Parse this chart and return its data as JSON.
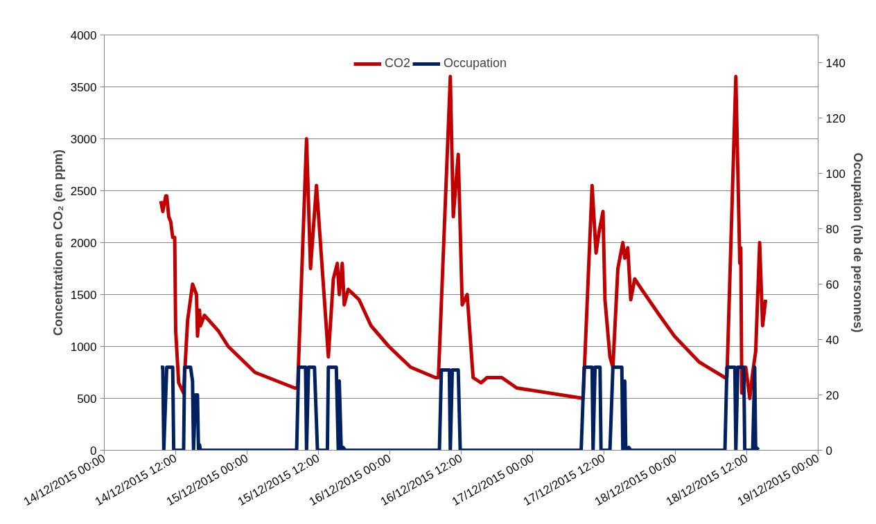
{
  "chart_data": {
    "type": "line",
    "xlabel": null,
    "ylabel": "Concentration en CO₂ (en ppm)",
    "y2label": "Occupation (nb de personnes)",
    "xlim": [
      "2015-12-14T00:00",
      "2015-12-19T00:00"
    ],
    "xticks": [
      {
        "value": "2015-12-14T00:00",
        "label": "14/12/2015 00:00"
      },
      {
        "value": "2015-12-14T12:00",
        "label": "14/12/2015 12:00"
      },
      {
        "value": "2015-12-15T00:00",
        "label": "15/12/2015 00:00"
      },
      {
        "value": "2015-12-15T12:00",
        "label": "15/12/2015 12:00"
      },
      {
        "value": "2015-12-16T00:00",
        "label": "16/12/2015 00:00"
      },
      {
        "value": "2015-12-16T12:00",
        "label": "16/12/2015 12:00"
      },
      {
        "value": "2015-12-17T00:00",
        "label": "17/12/2015 00:00"
      },
      {
        "value": "2015-12-17T12:00",
        "label": "17/12/2015 12:00"
      },
      {
        "value": "2015-12-18T00:00",
        "label": "18/12/2015 00:00"
      },
      {
        "value": "2015-12-18T12:00",
        "label": "18/12/2015 12:00"
      },
      {
        "value": "2015-12-19T00:00",
        "label": "19/12/2015 00:00"
      }
    ],
    "ylim": [
      0,
      4000
    ],
    "yticks": [
      0,
      500,
      1000,
      1500,
      2000,
      2500,
      3000,
      3500,
      4000
    ],
    "y2lim": [
      0,
      150
    ],
    "y2ticks": [
      0,
      20,
      40,
      60,
      80,
      100,
      120,
      140
    ],
    "grid": "y",
    "legend": "top",
    "marker": "none",
    "line_style": "solid",
    "series": [
      {
        "name": "CO2",
        "color": "#c00000",
        "x": [
          "2015-12-14T09:30",
          "2015-12-14T09:50",
          "2015-12-14T10:00",
          "2015-12-14T10:20",
          "2015-12-14T10:30",
          "2015-12-14T10:50",
          "2015-12-14T11:10",
          "2015-12-14T11:30",
          "2015-12-14T11:50",
          "2015-12-14T12:00",
          "2015-12-14T12:30",
          "2015-12-14T13:20",
          "2015-12-14T14:00",
          "2015-12-14T14:50",
          "2015-12-14T15:30",
          "2015-12-14T15:40",
          "2015-12-14T16:00",
          "2015-12-14T16:10",
          "2015-12-14T16:50",
          "2015-12-14T19:10",
          "2015-12-14T20:50",
          "2015-12-15T01:20",
          "2015-12-15T08:00",
          "2015-12-15T08:30",
          "2015-12-15T10:00",
          "2015-12-15T10:40",
          "2015-12-15T11:40",
          "2015-12-15T13:40",
          "2015-12-15T14:30",
          "2015-12-15T15:10",
          "2015-12-15T15:30",
          "2015-12-15T16:00",
          "2015-12-15T16:20",
          "2015-12-15T17:00",
          "2015-12-15T18:50",
          "2015-12-15T20:50",
          "2015-12-15T23:50",
          "2015-12-16T03:30",
          "2015-12-16T07:40",
          "2015-12-16T08:10",
          "2015-12-16T10:10",
          "2015-12-16T10:40",
          "2015-12-16T11:30",
          "2015-12-16T12:10",
          "2015-12-16T13:00",
          "2015-12-16T14:00",
          "2015-12-16T15:20",
          "2015-12-16T16:20",
          "2015-12-16T18:50",
          "2015-12-16T21:20",
          "2015-12-17T08:30",
          "2015-12-17T10:00",
          "2015-12-17T10:40",
          "2015-12-17T11:10",
          "2015-12-17T11:50",
          "2015-12-17T12:10",
          "2015-12-17T13:00",
          "2015-12-17T13:30",
          "2015-12-17T14:20",
          "2015-12-17T15:10",
          "2015-12-17T15:30",
          "2015-12-17T16:00",
          "2015-12-17T16:30",
          "2015-12-17T17:10",
          "2015-12-17T18:20",
          "2015-12-17T21:20",
          "2015-12-17T23:50",
          "2015-12-18T04:00",
          "2015-12-18T08:20",
          "2015-12-18T08:40",
          "2015-12-18T10:10",
          "2015-12-18T10:50",
          "2015-12-18T11:00",
          "2015-12-18T11:10",
          "2015-12-18T11:50",
          "2015-12-18T12:30",
          "2015-12-18T13:00",
          "2015-12-18T13:30",
          "2015-12-18T14:10",
          "2015-12-18T14:40",
          "2015-12-18T15:10"
        ],
        "values": [
          2400,
          2300,
          2350,
          2450,
          2450,
          2250,
          2200,
          2050,
          2050,
          1150,
          650,
          550,
          1250,
          1600,
          1500,
          1100,
          1350,
          1200,
          1300,
          1150,
          1000,
          750,
          600,
          600,
          3000,
          1750,
          2550,
          900,
          1650,
          1800,
          1500,
          1800,
          1400,
          1550,
          1450,
          1200,
          1000,
          800,
          700,
          700,
          3600,
          2250,
          2850,
          1400,
          1500,
          700,
          650,
          700,
          700,
          600,
          500,
          2550,
          1900,
          2100,
          2300,
          1450,
          900,
          800,
          1750,
          2000,
          1850,
          1950,
          1450,
          1650,
          1550,
          1300,
          1100,
          850,
          700,
          700,
          3600,
          1800,
          1950,
          550,
          800,
          500,
          750,
          950,
          2000,
          1200,
          1450
        ]
      },
      {
        "name": "Occupation",
        "color": "#002060",
        "axis": "y2",
        "x": [
          "2015-12-14T09:30",
          "2015-12-14T09:50",
          "2015-12-14T10:00",
          "2015-12-14T10:30",
          "2015-12-14T11:30",
          "2015-12-14T11:40",
          "2015-12-14T13:20",
          "2015-12-14T13:30",
          "2015-12-14T14:30",
          "2015-12-14T14:50",
          "2015-12-14T15:00",
          "2015-12-14T15:20",
          "2015-12-14T15:40",
          "2015-12-14T15:50",
          "2015-12-14T16:00",
          "2015-12-14T16:10",
          "2015-12-15T08:20",
          "2015-12-15T08:40",
          "2015-12-15T09:50",
          "2015-12-15T10:00",
          "2015-12-15T10:20",
          "2015-12-15T11:20",
          "2015-12-15T11:50",
          "2015-12-15T13:30",
          "2015-12-15T13:40",
          "2015-12-15T15:00",
          "2015-12-15T15:20",
          "2015-12-15T15:30",
          "2015-12-15T15:50",
          "2015-12-15T16:10",
          "2015-12-15T16:30",
          "2015-12-16T08:20",
          "2015-12-16T08:40",
          "2015-12-16T10:00",
          "2015-12-16T10:10",
          "2015-12-16T10:30",
          "2015-12-16T11:30",
          "2015-12-16T11:50",
          "2015-12-17T08:10",
          "2015-12-17T08:40",
          "2015-12-17T10:00",
          "2015-12-17T10:10",
          "2015-12-17T10:30",
          "2015-12-17T11:20",
          "2015-12-17T11:30",
          "2015-12-17T13:00",
          "2015-12-17T13:30",
          "2015-12-17T15:00",
          "2015-12-17T15:10",
          "2015-12-17T15:30",
          "2015-12-17T15:40",
          "2015-12-17T16:10",
          "2015-12-17T16:30",
          "2015-12-18T08:20",
          "2015-12-18T08:40",
          "2015-12-18T10:00",
          "2015-12-18T10:10",
          "2015-12-18T10:30",
          "2015-12-18T11:30",
          "2015-12-18T11:40",
          "2015-12-18T13:00",
          "2015-12-18T13:20",
          "2015-12-18T13:30",
          "2015-12-18T14:00"
        ],
        "values": [
          30,
          30,
          0,
          30,
          30,
          0,
          0,
          30,
          30,
          25,
          0,
          20,
          20,
          0,
          2,
          0,
          0,
          30,
          30,
          0,
          30,
          30,
          0,
          0,
          30,
          30,
          0,
          25,
          0,
          1,
          0,
          0,
          29,
          29,
          0,
          29,
          29,
          0,
          0,
          30,
          30,
          0,
          30,
          30,
          0,
          0,
          30,
          30,
          0,
          25,
          0,
          1,
          0,
          0,
          30,
          30,
          0,
          30,
          30,
          0,
          0,
          30,
          0,
          1
        ]
      }
    ]
  }
}
